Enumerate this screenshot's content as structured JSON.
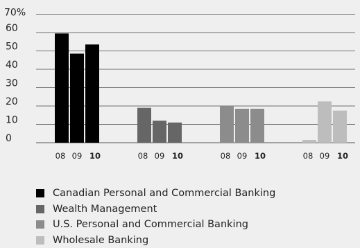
{
  "chart_data": {
    "type": "bar",
    "y_unit_label": "70%",
    "y_ticks": [
      "0",
      "10",
      "20",
      "30",
      "40",
      "50",
      "60"
    ],
    "ylim": [
      0,
      70
    ],
    "grid": true,
    "legend_position": "bottom-left",
    "groups": [
      {
        "series": "Canadian Personal and Commercial Banking",
        "color": "#000000",
        "x": [
          "08",
          "09",
          "10"
        ],
        "values": [
          59.5,
          48.5,
          53.5
        ]
      },
      {
        "series": "Wealth Management",
        "color": "#666666",
        "x": [
          "08",
          "09",
          "10"
        ],
        "values": [
          19,
          12,
          11
        ]
      },
      {
        "series": "U.S. Personal and Commercial Banking",
        "color": "#8c8c8c",
        "x": [
          "08",
          "09",
          "10"
        ],
        "values": [
          20,
          18.5,
          18.5
        ]
      },
      {
        "series": "Wholesale Banking",
        "color": "#bdbdbd",
        "x": [
          "08",
          "09",
          "10"
        ],
        "values": [
          1.5,
          22.5,
          17.5
        ]
      }
    ],
    "bold_category": "10"
  }
}
